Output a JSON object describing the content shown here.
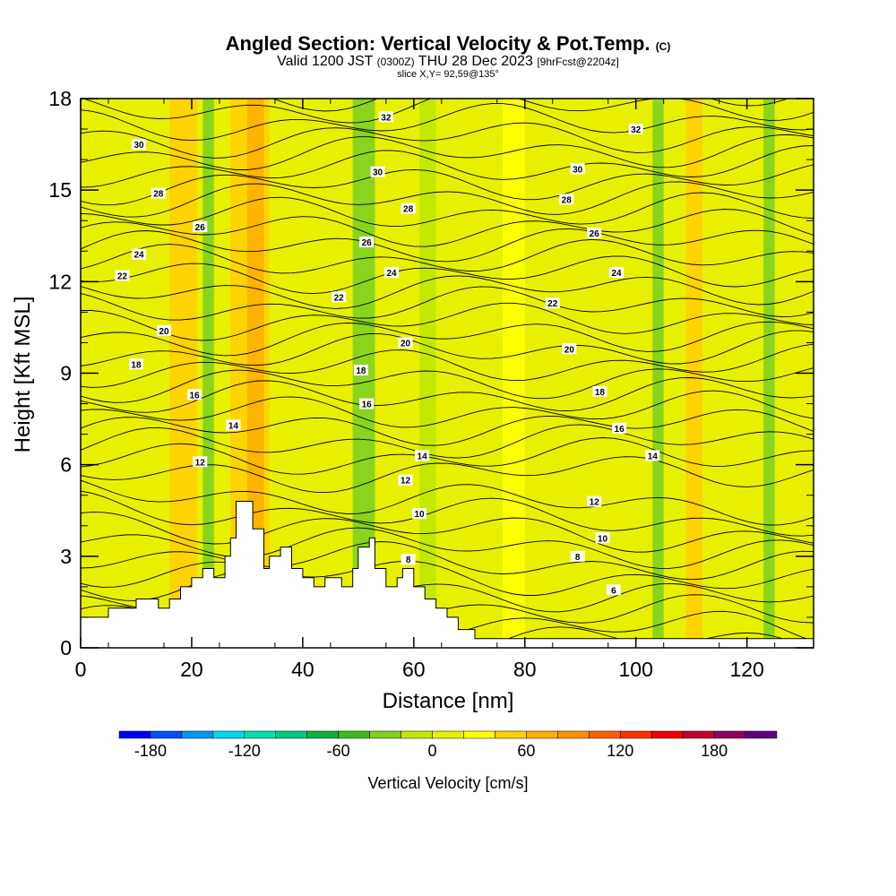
{
  "header": {
    "title": "Angled Section: Vertical Velocity & Pot.Temp.",
    "title_suffix": "(C)",
    "valid_prefix": "Valid 1200 JST",
    "valid_z": "(0300Z)",
    "valid_date": "THU 28 Dec 2023",
    "forecast": "[9hrFcst@2204z]",
    "slice": "slice X,Y= 92,59@135°"
  },
  "chart_data": {
    "type": "heatmap",
    "title": "Angled Section: Vertical Velocity & Pot.Temp.",
    "xlabel": "Distance [nm]",
    "ylabel": "Height [Kft MSL]",
    "xlim": [
      0,
      132
    ],
    "ylim": [
      0,
      18
    ],
    "x_ticks": [
      "0",
      "20",
      "40",
      "60",
      "80",
      "100",
      "120"
    ],
    "y_ticks": [
      "0",
      "3",
      "6",
      "9",
      "12",
      "15",
      "18"
    ],
    "colorbar": {
      "title": "Vertical Velocity [cm/s]",
      "ticks": [
        "-180",
        "-120",
        "-60",
        "0",
        "60",
        "120",
        "180"
      ],
      "range": [
        -200,
        220
      ],
      "colors": [
        "#0000f0",
        "#0050f0",
        "#0096f0",
        "#00d8f0",
        "#00e0b0",
        "#00c880",
        "#10b040",
        "#40b820",
        "#80d020",
        "#c0e800",
        "#e8f000",
        "#ffff00",
        "#ffd000",
        "#ffb000",
        "#ff9000",
        "#ff6000",
        "#ff3000",
        "#f00000",
        "#c00030",
        "#900060",
        "#600080"
      ]
    },
    "terrain_kft": [
      [
        0,
        1.0
      ],
      [
        5,
        1.0
      ],
      [
        5,
        1.3
      ],
      [
        10,
        1.3
      ],
      [
        10,
        1.6
      ],
      [
        14,
        1.6
      ],
      [
        14,
        1.3
      ],
      [
        16,
        1.3
      ],
      [
        16,
        1.6
      ],
      [
        18,
        1.6
      ],
      [
        18,
        2.0
      ],
      [
        20,
        2.0
      ],
      [
        20,
        2.3
      ],
      [
        22,
        2.3
      ],
      [
        22,
        2.6
      ],
      [
        24,
        2.6
      ],
      [
        24,
        2.3
      ],
      [
        26,
        2.3
      ],
      [
        26,
        3.0
      ],
      [
        27,
        3.0
      ],
      [
        27,
        3.6
      ],
      [
        28,
        3.6
      ],
      [
        28,
        4.8
      ],
      [
        31,
        4.8
      ],
      [
        31,
        3.9
      ],
      [
        33,
        3.9
      ],
      [
        33,
        2.6
      ],
      [
        34,
        2.6
      ],
      [
        34,
        3.0
      ],
      [
        36,
        3.0
      ],
      [
        36,
        3.3
      ],
      [
        38,
        3.3
      ],
      [
        38,
        2.6
      ],
      [
        40,
        2.6
      ],
      [
        40,
        2.3
      ],
      [
        42,
        2.3
      ],
      [
        42,
        2.0
      ],
      [
        44,
        2.0
      ],
      [
        44,
        2.3
      ],
      [
        47,
        2.3
      ],
      [
        47,
        2.0
      ],
      [
        49,
        2.0
      ],
      [
        49,
        2.6
      ],
      [
        50,
        2.6
      ],
      [
        50,
        3.3
      ],
      [
        52,
        3.3
      ],
      [
        52,
        3.6
      ],
      [
        53,
        3.6
      ],
      [
        53,
        2.6
      ],
      [
        55,
        2.6
      ],
      [
        55,
        2.0
      ],
      [
        57,
        2.0
      ],
      [
        57,
        2.3
      ],
      [
        58,
        2.3
      ],
      [
        58,
        2.6
      ],
      [
        60,
        2.6
      ],
      [
        60,
        2.0
      ],
      [
        62,
        2.0
      ],
      [
        62,
        1.6
      ],
      [
        64,
        1.6
      ],
      [
        64,
        1.3
      ],
      [
        66,
        1.3
      ],
      [
        66,
        1.0
      ],
      [
        68,
        1.0
      ],
      [
        68,
        0.6
      ],
      [
        71,
        0.6
      ],
      [
        71,
        0.3
      ],
      [
        132,
        0.3
      ]
    ],
    "vertical_velocity_bands": [
      {
        "x_from": 16,
        "x_to": 21,
        "value": 40
      },
      {
        "x_from": 22,
        "x_to": 24,
        "value": -40
      },
      {
        "x_from": 27,
        "x_to": 34,
        "value": 50
      },
      {
        "x_from": 30,
        "x_to": 33,
        "value": 70
      },
      {
        "x_from": 49,
        "x_to": 53,
        "value": -40
      },
      {
        "x_from": 61,
        "x_to": 64,
        "value": -20
      },
      {
        "x_from": 76,
        "x_to": 80,
        "value": 30
      },
      {
        "x_from": 103,
        "x_to": 105,
        "value": -40
      },
      {
        "x_from": 109,
        "x_to": 112,
        "value": 40
      },
      {
        "x_from": 123,
        "x_to": 125,
        "value": -30
      }
    ],
    "pot_temp_labels": [
      {
        "value": "30",
        "x": 10.5,
        "y": 16.5
      },
      {
        "value": "28",
        "x": 14,
        "y": 14.9
      },
      {
        "value": "26",
        "x": 21.5,
        "y": 13.8
      },
      {
        "value": "24",
        "x": 10.5,
        "y": 12.9
      },
      {
        "value": "22",
        "x": 7.5,
        "y": 12.2
      },
      {
        "value": "20",
        "x": 15,
        "y": 10.4
      },
      {
        "value": "18",
        "x": 10,
        "y": 9.3
      },
      {
        "value": "16",
        "x": 20.5,
        "y": 8.3
      },
      {
        "value": "14",
        "x": 27.5,
        "y": 7.3
      },
      {
        "value": "12",
        "x": 21.5,
        "y": 6.1
      },
      {
        "value": "32",
        "x": 55,
        "y": 17.4
      },
      {
        "value": "30",
        "x": 53.5,
        "y": 15.6
      },
      {
        "value": "28",
        "x": 59,
        "y": 14.4
      },
      {
        "value": "26",
        "x": 51.5,
        "y": 13.3
      },
      {
        "value": "24",
        "x": 56,
        "y": 12.3
      },
      {
        "value": "22",
        "x": 46.5,
        "y": 11.5
      },
      {
        "value": "20",
        "x": 58.5,
        "y": 10.0
      },
      {
        "value": "18",
        "x": 50.5,
        "y": 9.1
      },
      {
        "value": "16",
        "x": 51.5,
        "y": 8.0
      },
      {
        "value": "14",
        "x": 61.5,
        "y": 6.3
      },
      {
        "value": "12",
        "x": 58.5,
        "y": 5.5
      },
      {
        "value": "10",
        "x": 61,
        "y": 4.4
      },
      {
        "value": "8",
        "x": 59,
        "y": 2.9
      },
      {
        "value": "32",
        "x": 100,
        "y": 17.0
      },
      {
        "value": "30",
        "x": 89.5,
        "y": 15.7
      },
      {
        "value": "28",
        "x": 87.5,
        "y": 14.7
      },
      {
        "value": "26",
        "x": 92.5,
        "y": 13.6
      },
      {
        "value": "24",
        "x": 96.5,
        "y": 12.3
      },
      {
        "value": "22",
        "x": 85,
        "y": 11.3
      },
      {
        "value": "20",
        "x": 88,
        "y": 9.8
      },
      {
        "value": "18",
        "x": 93.5,
        "y": 8.4
      },
      {
        "value": "16",
        "x": 97,
        "y": 7.2
      },
      {
        "value": "14",
        "x": 103,
        "y": 6.3
      },
      {
        "value": "12",
        "x": 92.5,
        "y": 4.8
      },
      {
        "value": "10",
        "x": 94,
        "y": 3.6
      },
      {
        "value": "8",
        "x": 89.5,
        "y": 3.0
      },
      {
        "value": "6",
        "x": 96,
        "y": 1.9
      }
    ]
  }
}
